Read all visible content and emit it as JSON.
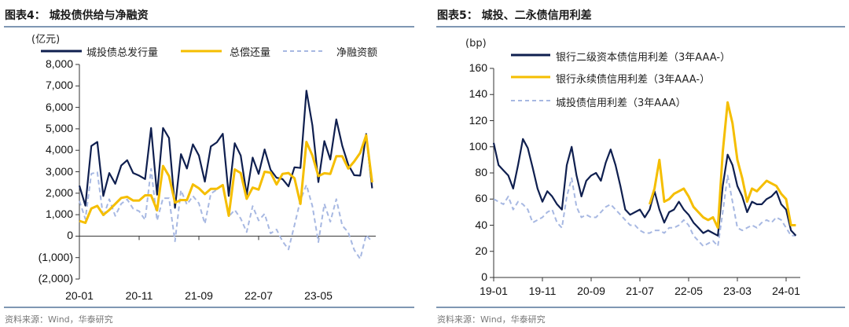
{
  "left": {
    "title": "图表4：  城投债供给与净融资",
    "unit": "(亿元)",
    "source": "资料来源：Wind，华泰研究"
  },
  "right": {
    "title": "图表5：  城投、二永债信用利差",
    "unit": "(bp)",
    "source": "资料来源：Wind，华泰研究"
  },
  "colors": {
    "dark": "#0f1f4f",
    "gold": "#f5be00",
    "light": "#a7b8e2",
    "rule": "#7f97b3"
  },
  "chart_data": [
    {
      "type": "line",
      "title": "城投债供给与净融资",
      "ylabel": "(亿元)",
      "ylim": [
        -2000,
        8000
      ],
      "yticks": [
        "8,000",
        "7,000",
        "6,000",
        "5,000",
        "4,000",
        "3,000",
        "2,000",
        "1,000",
        "0",
        "(1,000)",
        "(2,000)"
      ],
      "xticks": [
        "20-01",
        "20-11",
        "21-09",
        "22-07",
        "23-05"
      ],
      "x_start": "20-01",
      "x_end": "24-02",
      "grid": false,
      "legend": "top",
      "series": [
        {
          "name": "城投债总发行量",
          "style": "solid",
          "color": "#0f1f4f",
          "values": [
            2350,
            1420,
            4200,
            4390,
            1870,
            2940,
            2440,
            3290,
            3540,
            2940,
            2820,
            2660,
            5040,
            1930,
            5040,
            4570,
            1320,
            3820,
            3150,
            4280,
            3760,
            2540,
            4180,
            4370,
            4770,
            1870,
            4330,
            3760,
            1930,
            3660,
            2900,
            4040,
            3090,
            2720,
            2660,
            2320,
            3210,
            3180,
            6780,
            5160,
            2520,
            4430,
            3570,
            5440,
            4210,
            3330,
            2840,
            2820,
            4760,
            2230
          ]
        },
        {
          "name": "总偿还量",
          "style": "solid",
          "color": "#f5be00",
          "values": [
            710,
            620,
            1290,
            1410,
            990,
            1220,
            1500,
            1780,
            1830,
            1660,
            1660,
            1900,
            1900,
            1200,
            3270,
            2800,
            1560,
            1680,
            1680,
            2410,
            2230,
            1960,
            2200,
            2200,
            2380,
            950,
            3110,
            2940,
            1740,
            2260,
            2170,
            3000,
            2960,
            2410,
            2900,
            2940,
            2700,
            1500,
            4390,
            3760,
            2800,
            2930,
            2900,
            3720,
            3720,
            3150,
            3480,
            3880,
            4700,
            2500
          ]
        },
        {
          "name": "净融资额",
          "style": "dashed",
          "color": "#a7b8e2",
          "values": [
            1640,
            800,
            2910,
            2980,
            880,
            1720,
            940,
            1510,
            1710,
            1280,
            1160,
            760,
            3140,
            730,
            1770,
            1770,
            -240,
            2140,
            1470,
            1870,
            1530,
            580,
            1980,
            2170,
            2390,
            920,
            1220,
            820,
            190,
            1400,
            730,
            1040,
            130,
            310,
            -240,
            -620,
            510,
            1680,
            2390,
            1400,
            -280,
            1500,
            670,
            1720,
            490,
            180,
            -640,
            -1060,
            60,
            -270
          ]
        }
      ]
    },
    {
      "type": "line",
      "title": "城投、二永债信用利差",
      "ylabel": "(bp)",
      "ylim": [
        0,
        160
      ],
      "yticks": [
        "160",
        "140",
        "120",
        "100",
        "80",
        "60",
        "40",
        "20",
        "0"
      ],
      "xticks": [
        "19-01",
        "19-11",
        "20-09",
        "21-07",
        "22-05",
        "23-03",
        "24-01"
      ],
      "x_start": "19-01",
      "x_end": "24-03",
      "grid": false,
      "legend": "top",
      "series": [
        {
          "name": "银行二级资本债信用利差（3年AAA-）",
          "style": "solid",
          "color": "#0f1f4f",
          "start": "19-01",
          "values": [
            103,
            86,
            82,
            78,
            68,
            86,
            106,
            99,
            84,
            68,
            58,
            66,
            62,
            56,
            52,
            86,
            100,
            78,
            62,
            74,
            78,
            80,
            74,
            88,
            98,
            86,
            70,
            52,
            48,
            50,
            52,
            46,
            52,
            66,
            52,
            42,
            50,
            52,
            58,
            52,
            48,
            42,
            38,
            34,
            36,
            34,
            32,
            70,
            94,
            86,
            70,
            62,
            50,
            58,
            56,
            56,
            60,
            62,
            66,
            56,
            52,
            36,
            32
          ]
        },
        {
          "name": "银行永续债信用利差（3年AAA-）",
          "style": "solid",
          "color": "#f5be00",
          "start": "21-09",
          "values": [
            56,
            68,
            90,
            58,
            60,
            64,
            66,
            68,
            62,
            54,
            50,
            46,
            44,
            46,
            38,
            96,
            134,
            118,
            90,
            76,
            58,
            68,
            66,
            70,
            74,
            72,
            70,
            64,
            60,
            40,
            40
          ]
        },
        {
          "name": "城投债信用利差（3年AAA）",
          "style": "dashed",
          "color": "#a7b8e2",
          "start": "19-01",
          "values": [
            60,
            58,
            56,
            62,
            52,
            58,
            56,
            52,
            42,
            44,
            46,
            50,
            52,
            42,
            38,
            62,
            76,
            54,
            46,
            48,
            46,
            46,
            50,
            54,
            56,
            52,
            48,
            44,
            40,
            40,
            36,
            34,
            34,
            36,
            36,
            34,
            38,
            38,
            40,
            44,
            40,
            32,
            28,
            24,
            26,
            28,
            24,
            50,
            78,
            58,
            38,
            36,
            38,
            40,
            38,
            42,
            44,
            42,
            46,
            44,
            38,
            32,
            32
          ]
        }
      ]
    }
  ]
}
